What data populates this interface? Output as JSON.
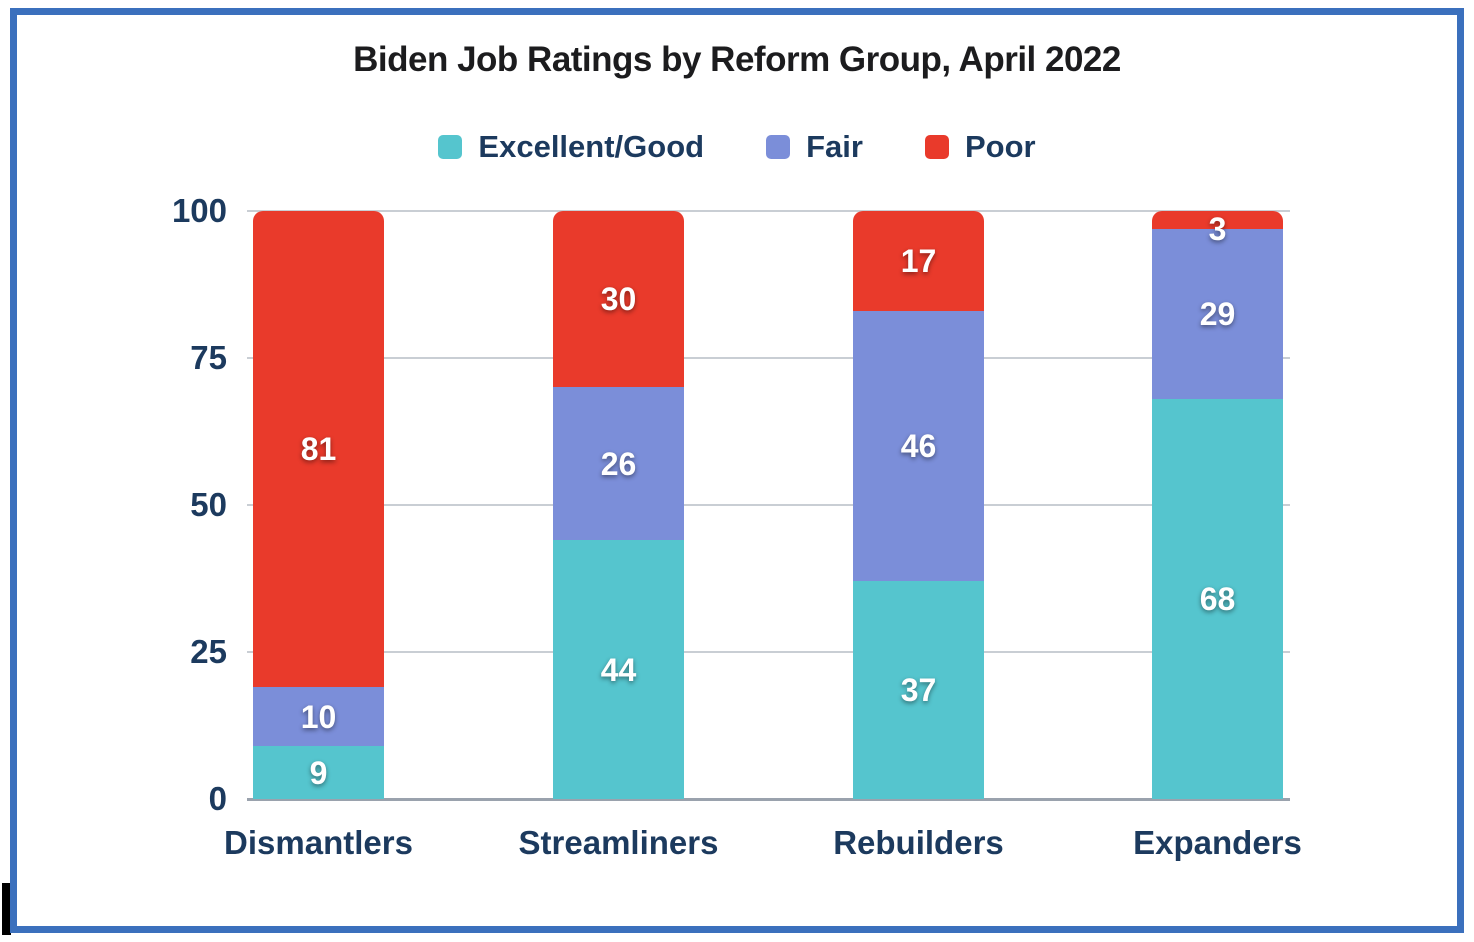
{
  "chart_data": {
    "type": "bar",
    "stacked": true,
    "title": "Biden Job Ratings by Reform Group, April 2022",
    "categories": [
      "Dismantlers",
      "Streamliners",
      "Rebuilders",
      "Expanders"
    ],
    "series": [
      {
        "name": "Excellent/Good",
        "color": "#55c5ce",
        "values": [
          9,
          44,
          37,
          68
        ]
      },
      {
        "name": "Fair",
        "color": "#7b8ed9",
        "values": [
          10,
          26,
          46,
          29
        ]
      },
      {
        "name": "Poor",
        "color": "#e93a2b",
        "values": [
          81,
          30,
          17,
          3
        ]
      }
    ],
    "xlabel": "",
    "ylabel": "",
    "ylim": [
      0,
      100
    ],
    "yticks": [
      0,
      25,
      50,
      75,
      100
    ],
    "grid": true,
    "legend_position": "top",
    "value_labels": true
  },
  "styles": {
    "title_color": "#1c1c1e",
    "axis_text_color": "#1c3a5e",
    "gridline_color": "#c9ced4",
    "baseline_color": "#9aa2ad",
    "value_label_color": "#ffffff",
    "frame_border_color": "#3b70bd"
  }
}
